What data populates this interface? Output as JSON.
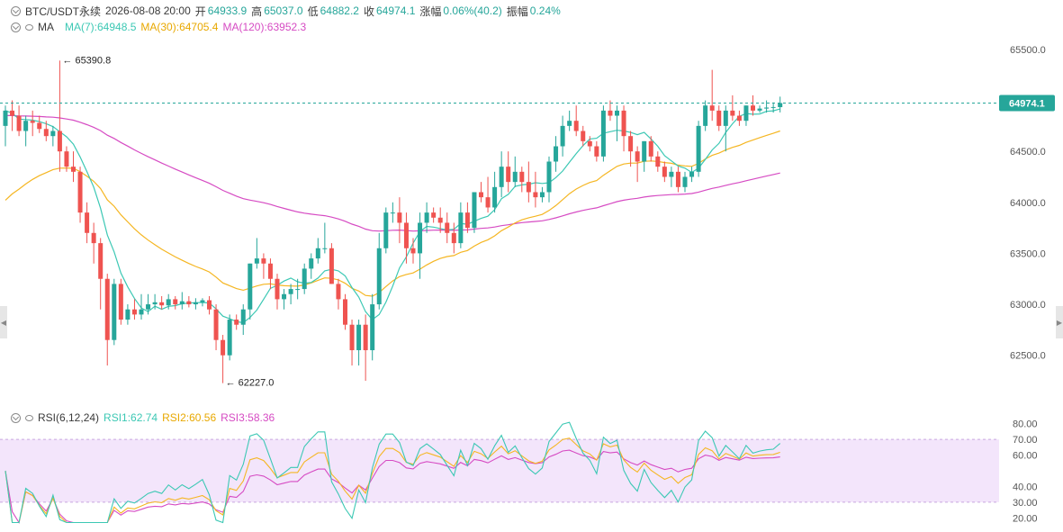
{
  "header": {
    "symbol": "BTC/USDT永续",
    "datetime": "2026-08-08 20:00",
    "open_label": "开",
    "open": "64933.9",
    "high_label": "高",
    "high": "65037.0",
    "low_label": "低",
    "low": "64882.2",
    "close_label": "收",
    "close": "64974.1",
    "change_label": "涨幅",
    "change": "0.06%(40.2)",
    "amp_label": "振幅",
    "amp": "0.24%"
  },
  "ma_legend": {
    "label": "MA",
    "ma7": "MA(7):64948.5",
    "ma30": "MA(30):64705.4",
    "ma120": "MA(120):63952.3"
  },
  "rsi_legend": {
    "label": "RSI(6,12,24)",
    "rsi1": "RSI1:62.74",
    "rsi2": "RSI2:60.56",
    "rsi3": "RSI3:58.36"
  },
  "colors": {
    "up": "#26a69a",
    "down": "#ef5350",
    "ma7": "#3cc8b4",
    "ma30": "#f5b622",
    "ma120": "#d64bc3",
    "rsi_band": "#f3e5fb",
    "current_line": "#26a69a"
  },
  "icons": [
    "collapse-chevron-icon",
    "visibility-eye-icon",
    "scroll-left-arrow-icon",
    "scroll-right-arrow-icon"
  ],
  "chart_data": [
    {
      "type": "candlestick",
      "ylim": [
        62100,
        65720
      ],
      "yticks": [
        62500,
        63000,
        63500,
        64000,
        64500,
        65000,
        65500
      ],
      "ytick_labels": [
        "62500.0",
        "63000.0",
        "63500.0",
        "64000.0",
        "64500.0",
        "65000.0",
        "65500.0"
      ],
      "current_price": 64974.1,
      "current_price_label": "64974.1",
      "annotations": [
        {
          "text": "65390.8",
          "value": 65390.8,
          "index": 8
        },
        {
          "text": "62227.0",
          "value": 62227.0,
          "index": 32
        }
      ],
      "candles": [
        [
          64750,
          64950,
          64550,
          64900
        ],
        [
          64900,
          65000,
          64700,
          64850
        ],
        [
          64850,
          64950,
          64650,
          64700
        ],
        [
          64700,
          64850,
          64550,
          64800
        ],
        [
          64800,
          64900,
          64650,
          64780
        ],
        [
          64780,
          64850,
          64680,
          64720
        ],
        [
          64720,
          64800,
          64600,
          64650
        ],
        [
          64650,
          64750,
          64550,
          64700
        ],
        [
          64700,
          65390.8,
          64300,
          64500
        ],
        [
          64500,
          64550,
          64300,
          64350
        ],
        [
          64350,
          64500,
          64200,
          64300
        ],
        [
          64300,
          64350,
          63800,
          63900
        ],
        [
          63900,
          64000,
          63600,
          63700
        ],
        [
          63700,
          63800,
          63400,
          63600
        ],
        [
          63600,
          63650,
          62950,
          63250
        ],
        [
          63250,
          63300,
          62400,
          62650
        ],
        [
          62650,
          63250,
          62600,
          63200
        ],
        [
          63200,
          63250,
          62800,
          62850
        ],
        [
          62850,
          63000,
          62800,
          62950
        ],
        [
          62950,
          63050,
          62850,
          62900
        ],
        [
          62900,
          63100,
          62850,
          62950
        ],
        [
          62950,
          63100,
          62900,
          63000
        ],
        [
          63000,
          63100,
          62950,
          63020
        ],
        [
          63020,
          63080,
          62950,
          62990
        ],
        [
          62990,
          63100,
          62950,
          63050
        ],
        [
          63050,
          63080,
          62950,
          63000
        ],
        [
          63000,
          63120,
          62950,
          63030
        ],
        [
          63030,
          63080,
          62970,
          63000
        ],
        [
          63000,
          63060,
          62950,
          63020
        ],
        [
          63020,
          63060,
          62980,
          63040
        ],
        [
          63040,
          63080,
          62900,
          62950
        ],
        [
          62950,
          63000,
          62550,
          62650
        ],
        [
          62650,
          62700,
          62227,
          62500
        ],
        [
          62500,
          62900,
          62450,
          62850
        ],
        [
          62850,
          62900,
          62750,
          62800
        ],
        [
          62800,
          63000,
          62700,
          62950
        ],
        [
          62950,
          63400,
          62850,
          63400
        ],
        [
          63400,
          63650,
          63350,
          63450
        ],
        [
          63450,
          63500,
          63250,
          63400
        ],
        [
          63400,
          63450,
          63150,
          63250
        ],
        [
          63250,
          63300,
          62950,
          63050
        ],
        [
          63050,
          63150,
          62950,
          63100
        ],
        [
          63100,
          63200,
          63000,
          63150
        ],
        [
          63150,
          63250,
          63050,
          63150
        ],
        [
          63150,
          63400,
          63100,
          63350
        ],
        [
          63350,
          63500,
          63250,
          63450
        ],
        [
          63450,
          63650,
          63400,
          63550
        ],
        [
          63550,
          63800,
          63500,
          63550
        ],
        [
          63550,
          63600,
          63200,
          63200
        ],
        [
          63200,
          63250,
          62950,
          63050
        ],
        [
          63050,
          63100,
          62750,
          62800
        ],
        [
          62800,
          62850,
          62400,
          62550
        ],
        [
          62550,
          62850,
          62400,
          62800
        ],
        [
          62800,
          62900,
          62250,
          62550
        ],
        [
          62550,
          63100,
          62450,
          63000
        ],
        [
          63000,
          63700,
          62950,
          63550
        ],
        [
          63550,
          63950,
          63500,
          63900
        ],
        [
          63900,
          64000,
          63800,
          63900
        ],
        [
          63900,
          64050,
          63600,
          63800
        ],
        [
          63800,
          63900,
          63400,
          63550
        ],
        [
          63550,
          63650,
          63400,
          63500
        ],
        [
          63500,
          63900,
          63250,
          63800
        ],
        [
          63800,
          64000,
          63700,
          63900
        ],
        [
          63900,
          63950,
          63800,
          63850
        ],
        [
          63850,
          63950,
          63700,
          63800
        ],
        [
          63800,
          63900,
          63600,
          63700
        ],
        [
          63700,
          63800,
          63500,
          63600
        ],
        [
          63600,
          64000,
          63550,
          63900
        ],
        [
          63900,
          64000,
          63700,
          63750
        ],
        [
          63750,
          64100,
          63700,
          64100
        ],
        [
          64100,
          64200,
          64000,
          64050
        ],
        [
          64050,
          64250,
          63900,
          63950
        ],
        [
          63950,
          64300,
          63900,
          64150
        ],
        [
          64150,
          64500,
          64050,
          64350
        ],
        [
          64350,
          64500,
          64100,
          64200
        ],
        [
          64200,
          64450,
          64150,
          64300
        ],
        [
          64300,
          64350,
          64100,
          64200
        ],
        [
          64200,
          64400,
          64000,
          64100
        ],
        [
          64100,
          64300,
          63950,
          64050
        ],
        [
          64050,
          64150,
          64000,
          64100
        ],
        [
          64100,
          64450,
          64000,
          64400
        ],
        [
          64400,
          64650,
          64300,
          64550
        ],
        [
          64550,
          64850,
          64450,
          64750
        ],
        [
          64750,
          64900,
          64700,
          64800
        ],
        [
          64800,
          64950,
          64650,
          64700
        ],
        [
          64700,
          64750,
          64550,
          64600
        ],
        [
          64600,
          64650,
          64500,
          64550
        ],
        [
          64550,
          64600,
          64400,
          64450
        ],
        [
          64450,
          64950,
          64400,
          64900
        ],
        [
          64900,
          65000,
          64800,
          64850
        ],
        [
          64850,
          64950,
          64600,
          64900
        ],
        [
          64900,
          64950,
          64500,
          64650
        ],
        [
          64650,
          64700,
          64350,
          64500
        ],
        [
          64500,
          64550,
          64200,
          64400
        ],
        [
          64400,
          64600,
          64300,
          64600
        ],
        [
          64600,
          64650,
          64400,
          64450
        ],
        [
          64450,
          64500,
          64300,
          64350
        ],
        [
          64350,
          64400,
          64200,
          64250
        ],
        [
          64250,
          64350,
          64150,
          64300
        ],
        [
          64300,
          64350,
          64100,
          64150
        ],
        [
          64150,
          64300,
          64100,
          64250
        ],
        [
          64250,
          64350,
          64200,
          64300
        ],
        [
          64300,
          64800,
          64250,
          64750
        ],
        [
          64750,
          65000,
          64700,
          64950
        ],
        [
          64950,
          65300,
          64800,
          64900
        ],
        [
          64900,
          64950,
          64700,
          64750
        ],
        [
          64750,
          64950,
          64500,
          64900
        ],
        [
          64900,
          65050,
          64800,
          64850
        ],
        [
          64850,
          64900,
          64750,
          64800
        ],
        [
          64800,
          64950,
          64750,
          64950
        ],
        [
          64950,
          65050,
          64850,
          64900
        ],
        [
          64900,
          64950,
          64880,
          64920
        ],
        [
          64920,
          65000,
          64880,
          64930
        ],
        [
          64930,
          64980,
          64880,
          64935
        ],
        [
          64933.9,
          65037.0,
          64882.2,
          64974.1
        ]
      ]
    },
    {
      "type": "line",
      "name": "RSI",
      "ylim": [
        15,
        85
      ],
      "yticks": [
        20,
        30,
        40,
        60,
        70,
        80
      ],
      "ytick_labels": [
        "20.00",
        "30.00",
        "40.00",
        "60.00",
        "70.00",
        "80.00"
      ],
      "band": [
        30,
        70
      ]
    }
  ]
}
